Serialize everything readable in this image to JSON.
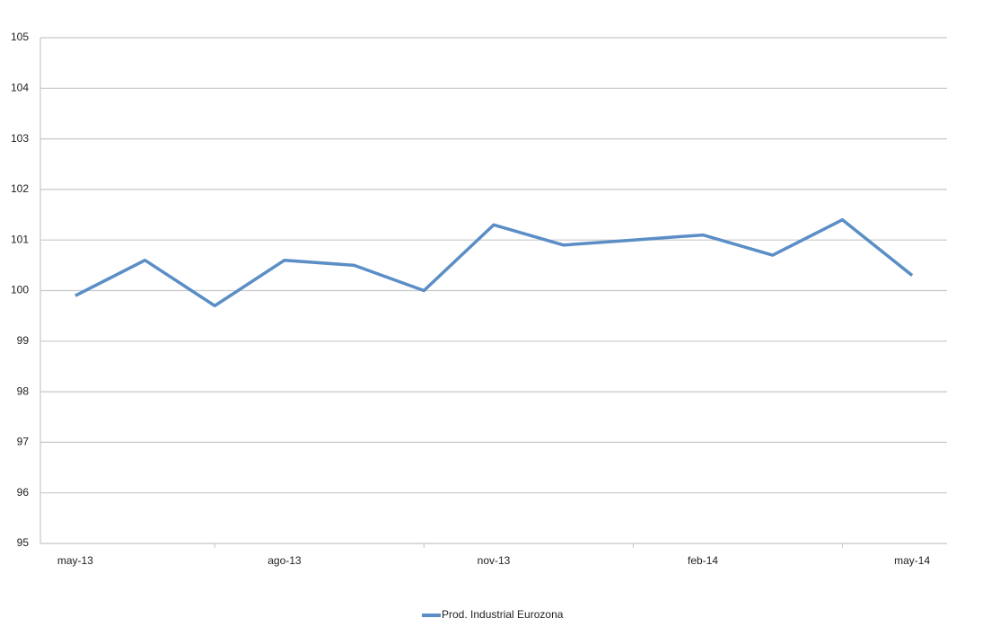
{
  "chart_data": {
    "type": "line",
    "categories": [
      "may-13",
      null,
      null,
      "ago-13",
      null,
      null,
      "nov-13",
      null,
      null,
      "feb-14",
      null,
      null,
      "may-14"
    ],
    "series": [
      {
        "name": "Prod. Industrial Eurozona",
        "color": "#5b8ec6",
        "values": [
          99.9,
          100.6,
          99.7,
          100.6,
          100.5,
          100.0,
          101.3,
          100.9,
          101.0,
          101.1,
          100.7,
          101.4,
          100.3
        ]
      }
    ],
    "ylim": [
      95,
      105
    ],
    "yticks": [
      95,
      96,
      97,
      98,
      99,
      100,
      101,
      102,
      103,
      104,
      105
    ],
    "grid": true,
    "legend": "bottom"
  }
}
